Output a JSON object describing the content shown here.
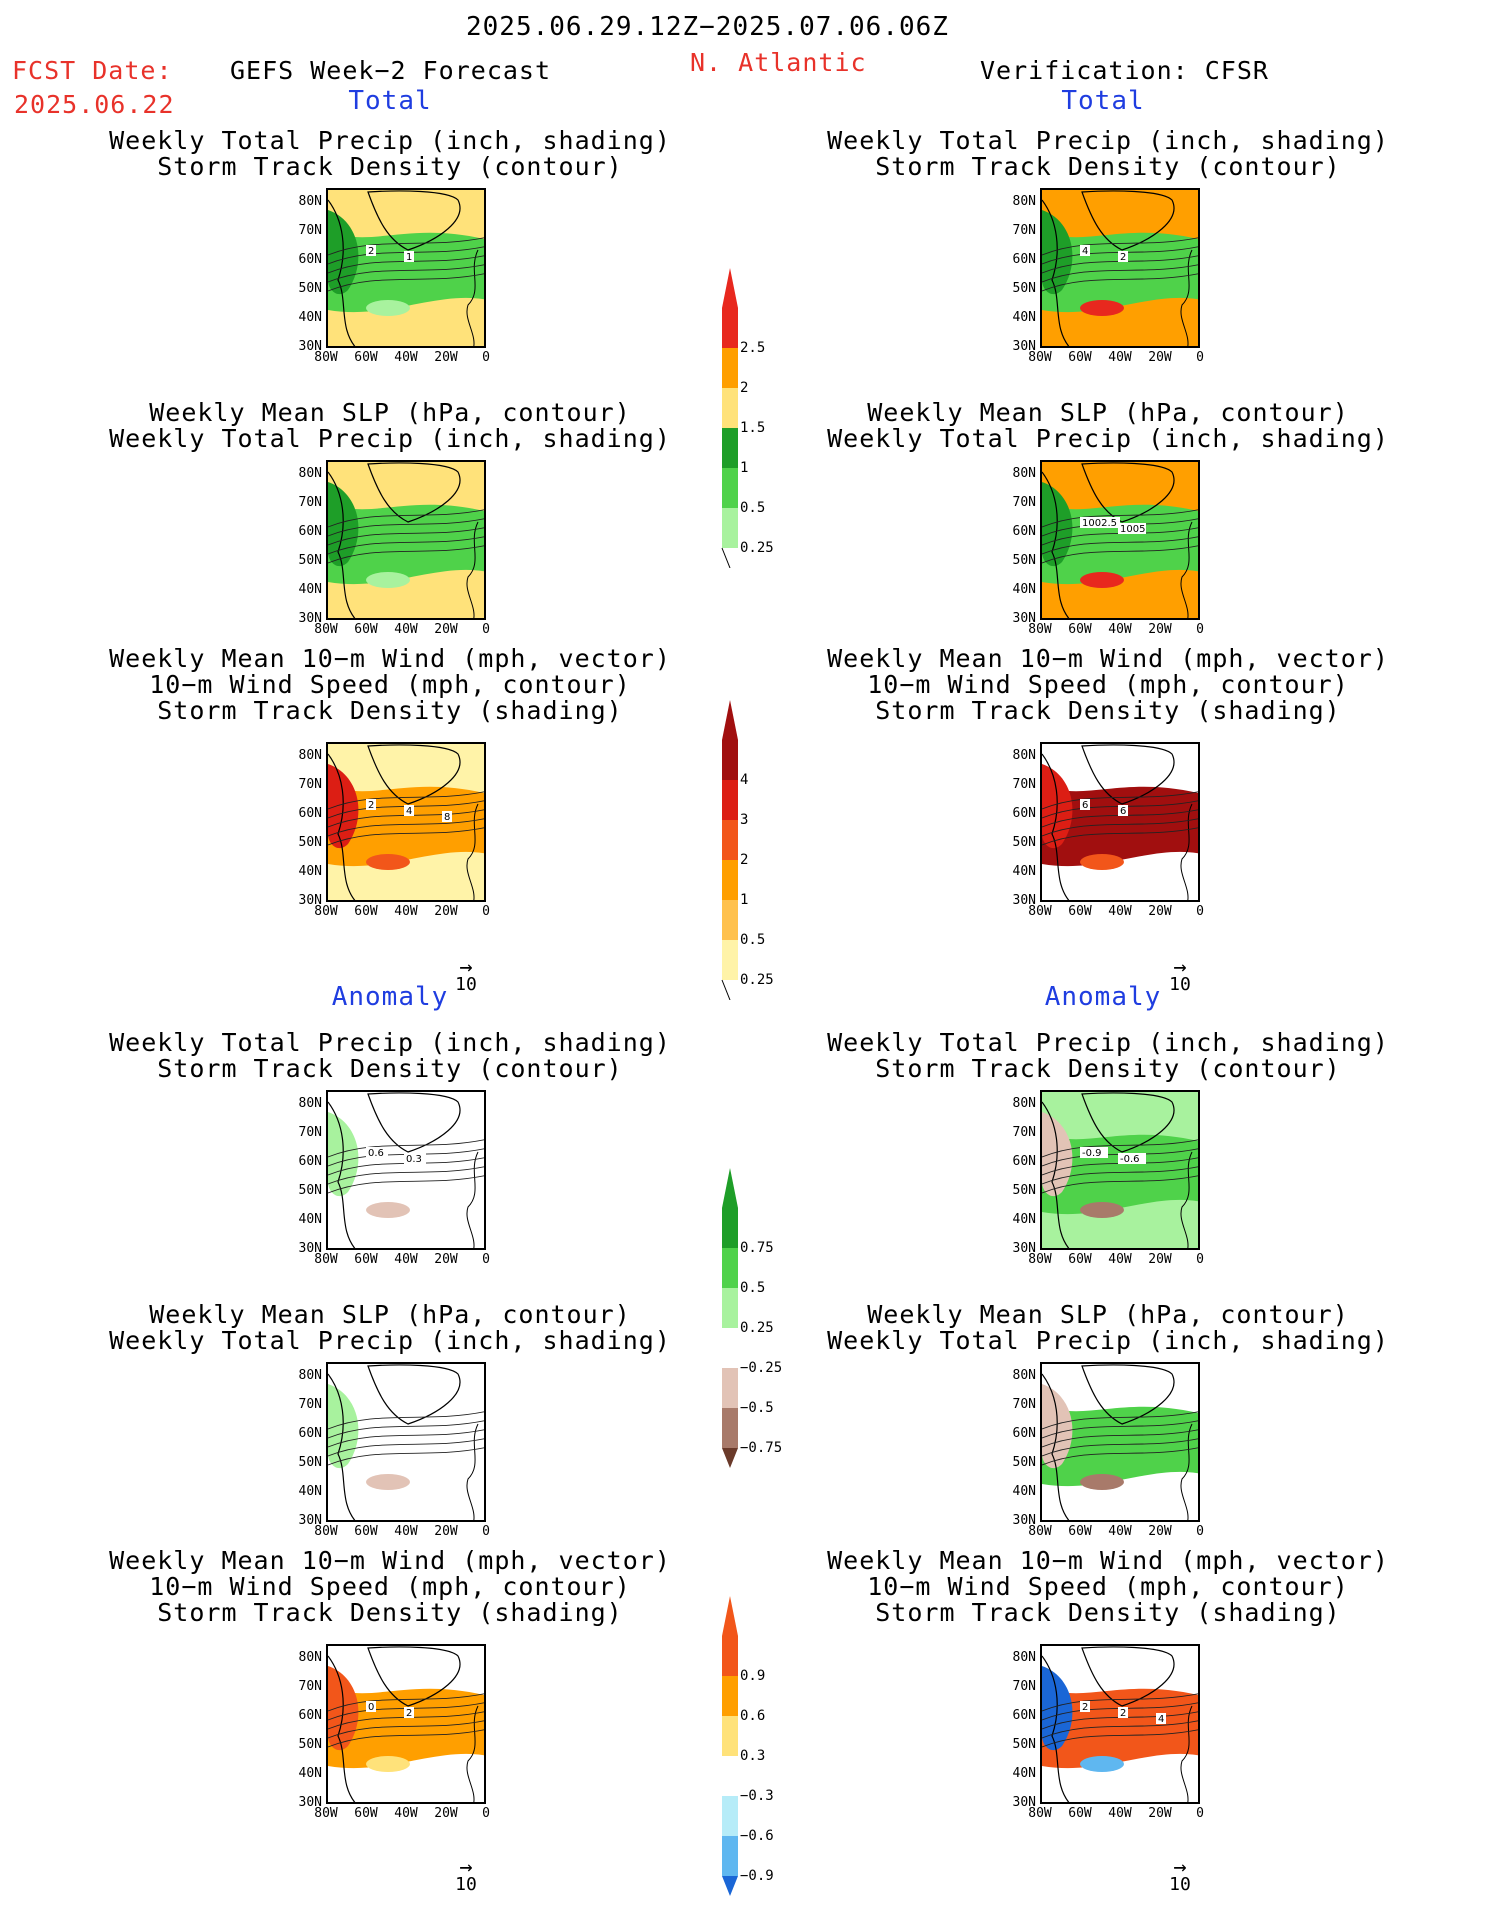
{
  "header": {
    "date_range": "2025.06.29.12Z−2025.07.06.06Z",
    "fcst_label": "FCST Date:",
    "fcst_date": "2025.06.22",
    "left_title": "GEFS Week−2 Forecast",
    "region": "N. Atlantic",
    "right_title": "Verification: CFSR"
  },
  "sections": {
    "total": "Total",
    "anomaly": "Anomaly"
  },
  "axes": {
    "lat_labels": [
      "80N",
      "70N",
      "60N",
      "50N",
      "40N",
      "30N"
    ],
    "lon_labels": [
      "80W",
      "60W",
      "40W",
      "20W",
      "0"
    ]
  },
  "panels": [
    {
      "row": 0,
      "col": 0,
      "lines": [
        "Weekly Total Precip (inch, shading)",
        "Storm Track Density (contour)"
      ],
      "fill": "precip",
      "labels": [
        "2",
        "1"
      ]
    },
    {
      "row": 0,
      "col": 1,
      "lines": [
        "Weekly Total Precip (inch, shading)",
        "Storm Track Density (contour)"
      ],
      "fill": "precip_obs",
      "labels": [
        "4",
        "2"
      ]
    },
    {
      "row": 1,
      "col": 0,
      "lines": [
        "Weekly Mean SLP (hPa, contour)",
        "Weekly Total Precip (inch, shading)"
      ],
      "fill": "precip",
      "labels": []
    },
    {
      "row": 1,
      "col": 1,
      "lines": [
        "Weekly Mean SLP (hPa, contour)",
        "Weekly Total Precip (inch, shading)"
      ],
      "fill": "precip_obs",
      "labels": [
        "1002.5",
        "1005"
      ]
    },
    {
      "row": 2,
      "col": 0,
      "lines": [
        "Weekly Mean 10−m Wind (mph, vector)",
        "10−m Wind Speed (mph, contour)",
        "Storm Track Density (shading)"
      ],
      "fill": "storm",
      "labels": [
        "2",
        "4",
        "8"
      ]
    },
    {
      "row": 2,
      "col": 1,
      "lines": [
        "Weekly Mean 10−m Wind (mph, vector)",
        "10−m Wind Speed (mph, contour)",
        "Storm Track Density (shading)"
      ],
      "fill": "storm_obs",
      "labels": [
        "6",
        "6"
      ]
    },
    {
      "row": 3,
      "col": 0,
      "lines": [
        "Weekly Total Precip (inch, shading)",
        "Storm Track Density (contour)"
      ],
      "fill": "anom_weak",
      "labels": [
        "0.6",
        "0.3"
      ]
    },
    {
      "row": 3,
      "col": 1,
      "lines": [
        "Weekly Total Precip (inch, shading)",
        "Storm Track Density (contour)"
      ],
      "fill": "anom_obs",
      "labels": [
        "-0.9",
        "-0.6"
      ]
    },
    {
      "row": 4,
      "col": 0,
      "lines": [
        "Weekly Mean SLP (hPa, contour)",
        "Weekly Total Precip (inch, shading)"
      ],
      "fill": "anom_weak",
      "labels": []
    },
    {
      "row": 4,
      "col": 1,
      "lines": [
        "Weekly Mean SLP (hPa, contour)",
        "Weekly Total Precip (inch, shading)"
      ],
      "fill": "anom_obs2",
      "labels": []
    },
    {
      "row": 5,
      "col": 0,
      "lines": [
        "Weekly Mean 10−m Wind (mph, vector)",
        "10−m Wind Speed (mph, contour)",
        "Storm Track Density (shading)"
      ],
      "fill": "storm_anom",
      "labels": [
        "0",
        "2"
      ]
    },
    {
      "row": 5,
      "col": 1,
      "lines": [
        "Weekly Mean 10−m Wind (mph, vector)",
        "10−m Wind Speed (mph, contour)",
        "Storm Track Density (shading)"
      ],
      "fill": "storm_anom_obs",
      "labels": [
        "2",
        "2",
        "4"
      ]
    }
  ],
  "colorbars": [
    {
      "id": "precip",
      "labels": [
        "2.5",
        "2",
        "1.5",
        "1",
        "0.5",
        "0.25"
      ],
      "colors": [
        "#e8281e",
        "#ff9f00",
        "#ffe27a",
        "#1e9e28",
        "#4fd24a",
        "#a8f29e"
      ],
      "triangle": "#e8281e"
    },
    {
      "id": "storm",
      "labels": [
        "4",
        "3",
        "2",
        "1",
        "0.5",
        "0.25"
      ],
      "colors": [
        "#a10f0f",
        "#dc1e14",
        "#f2561a",
        "#ff9f00",
        "#ffc14d",
        "#fff3a8"
      ],
      "triangle": "#a10f0f"
    },
    {
      "id": "precip_anom",
      "labels": [
        "0.75",
        "0.5",
        "0.25",
        "−0.25",
        "−0.5",
        "−0.75"
      ],
      "colors": [
        "#1e9e28",
        "#4fd24a",
        "#a8f29e",
        "#ffffff",
        "#e2c3b6",
        "#a87a6a"
      ],
      "triangle_top": "#1e9e28",
      "triangle_bottom": "#6a3a2a"
    },
    {
      "id": "storm_anom",
      "labels": [
        "0.9",
        "0.6",
        "0.3",
        "−0.3",
        "−0.6",
        "−0.9"
      ],
      "colors": [
        "#f2561a",
        "#ff9f00",
        "#ffe27a",
        "#ffffff",
        "#b6ecf8",
        "#5fb7f0"
      ],
      "triangle_top": "#f2561a",
      "triangle_bottom": "#1a66d6"
    }
  ],
  "vector_ref": "10",
  "colors": {
    "red_text": "#e8322a",
    "blue_text": "#1f3de0"
  }
}
